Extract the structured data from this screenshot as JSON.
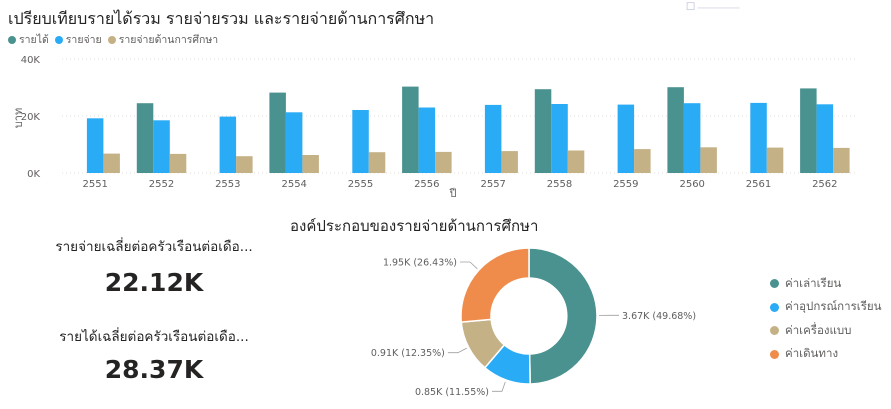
{
  "bar_chart": {
    "title": "เปรียบเทียบรายได้รวม รายจ่ายรวม และรายจ่ายด้านการศึกษา",
    "legend": [
      {
        "label": "รายได้",
        "color": "#4a9290"
      },
      {
        "label": "รายจ่าย",
        "color": "#2aabf6"
      },
      {
        "label": "รายจ่ายด้านการศึกษา",
        "color": "#c4b186"
      }
    ]
  },
  "cards": [
    {
      "label": "รายจ่ายเฉลี่ยต่อครัวเรือนต่อเดือ...",
      "value": "22.12K"
    },
    {
      "label": "รายได้เฉลี่ยต่อครัวเรือนต่อเดือ...",
      "value": "28.37K"
    }
  ],
  "donut": {
    "title": "องค์ประกอบของรายจ่ายด้านการศึกษา",
    "legend": [
      {
        "label": "ค่าเล่าเรียน",
        "color": "#4a9290"
      },
      {
        "label": "ค่าอุปกรณ์การเรียน",
        "color": "#2aabf6"
      },
      {
        "label": "ค่าเครื่องแบบ",
        "color": "#c4b186"
      },
      {
        "label": "ค่าเดินทาง",
        "color": "#f08c4b"
      }
    ]
  },
  "chart_data": [
    {
      "type": "bar",
      "title": "เปรียบเทียบรายได้รวม รายจ่ายรวม และรายจ่ายด้านการศึกษา",
      "xlabel": "ปี",
      "ylabel": "บาท",
      "ylim": [
        0,
        40000
      ],
      "yticks": [
        {
          "value": 0,
          "label": "0K"
        },
        {
          "value": 20000,
          "label": "20K"
        },
        {
          "value": 40000,
          "label": "40K"
        }
      ],
      "categories": [
        "2551",
        "2552",
        "2553",
        "2554",
        "2555",
        "2556",
        "2557",
        "2558",
        "2559",
        "2560",
        "2561",
        "2562"
      ],
      "series": [
        {
          "name": "รายได้",
          "color": "#4a9290",
          "values": [
            null,
            24500,
            null,
            28200,
            null,
            30300,
            null,
            29400,
            null,
            30100,
            null,
            29700
          ]
        },
        {
          "name": "รายจ่าย",
          "color": "#2aabf6",
          "values": [
            19200,
            18500,
            19800,
            21300,
            22100,
            23000,
            23900,
            24200,
            24000,
            24500,
            24600,
            24100
          ]
        },
        {
          "name": "รายจ่ายด้านการศึกษา",
          "color": "#c4b186",
          "values": [
            6800,
            6700,
            5900,
            6300,
            7300,
            7400,
            7700,
            7900,
            8400,
            9000,
            8900,
            8800
          ]
        }
      ],
      "grid": true,
      "legend_position": "top-left"
    },
    {
      "type": "pie",
      "title": "องค์ประกอบของรายจ่ายด้านการศึกษา",
      "donut": true,
      "slices": [
        {
          "name": "ค่าเล่าเรียน",
          "value": 3670,
          "percent": 49.68,
          "label": "3.67K (49.68%)",
          "color": "#4a9290"
        },
        {
          "name": "ค่าอุปกรณ์การเรียน",
          "value": 850,
          "percent": 11.55,
          "label": "0.85K (11.55%)",
          "color": "#2aabf6"
        },
        {
          "name": "ค่าเครื่องแบบ",
          "value": 910,
          "percent": 12.35,
          "label": "0.91K (12.35%)",
          "color": "#c4b186"
        },
        {
          "name": "ค่าเดินทาง",
          "value": 1950,
          "percent": 26.43,
          "label": "1.95K (26.43%)",
          "color": "#f08c4b"
        }
      ],
      "legend_position": "right"
    }
  ]
}
